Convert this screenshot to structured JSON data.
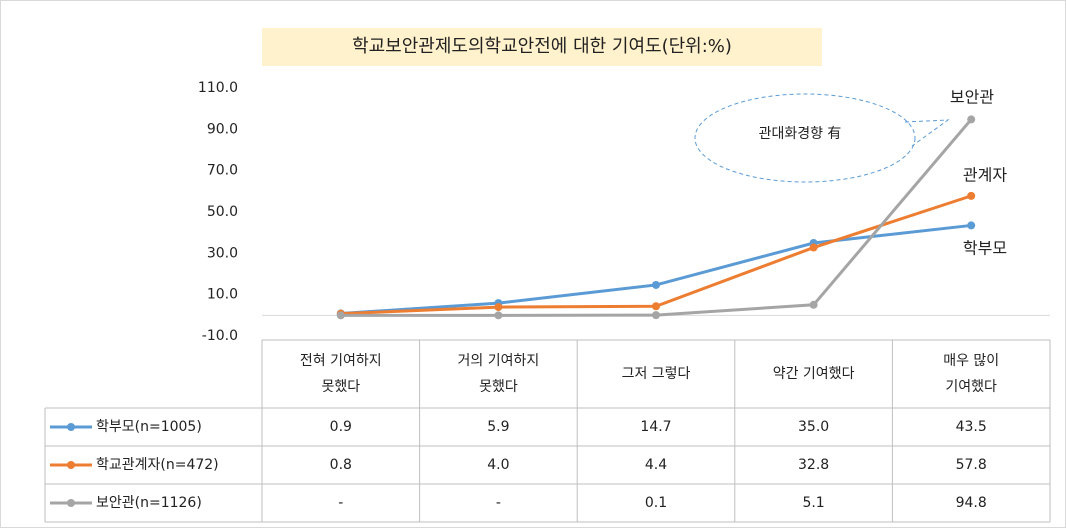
{
  "chart_data": {
    "type": "line",
    "title": "학교보안관제도의학교안전에 대한 기여도(단위:%)",
    "categories": [
      [
        "전혀 기여하지",
        "못했다"
      ],
      [
        "거의 기여하지",
        "못했다"
      ],
      [
        "그저 그렇다"
      ],
      [
        "약간 기여했다"
      ],
      [
        "매우 많이",
        "기여했다"
      ]
    ],
    "series": [
      {
        "name": "학부모(n=1005)",
        "color": "#5b9bd5",
        "values": [
          0.9,
          5.9,
          14.7,
          35.0,
          43.5
        ],
        "value_labels": [
          "0.9",
          "5.9",
          "14.7",
          "35.0",
          "43.5"
        ]
      },
      {
        "name": "학교관계자(n=472)",
        "color": "#ed7d31",
        "values": [
          0.8,
          4.0,
          4.4,
          32.8,
          57.8
        ],
        "value_labels": [
          "0.8",
          "4.0",
          "4.4",
          "32.8",
          "57.8"
        ]
      },
      {
        "name": "보안관(n=1126)",
        "color": "#a5a5a5",
        "values": [
          0,
          0,
          0.1,
          5.1,
          94.8
        ],
        "value_labels": [
          "-",
          "-",
          "0.1",
          "5.1",
          "94.8"
        ]
      }
    ],
    "ylim": [
      -10,
      110
    ],
    "yticks": [
      {
        "value": -10,
        "label": "-10.0"
      },
      {
        "value": 10,
        "label": "10.0"
      },
      {
        "value": 30,
        "label": "30.0"
      },
      {
        "value": 50,
        "label": "50.0"
      },
      {
        "value": 70,
        "label": "70.0"
      },
      {
        "value": 90,
        "label": "90.0"
      },
      {
        "value": 110,
        "label": "110.0"
      }
    ],
    "annotations": [
      "보안관",
      "관계자",
      "학부모",
      "관대화경향 有"
    ]
  }
}
